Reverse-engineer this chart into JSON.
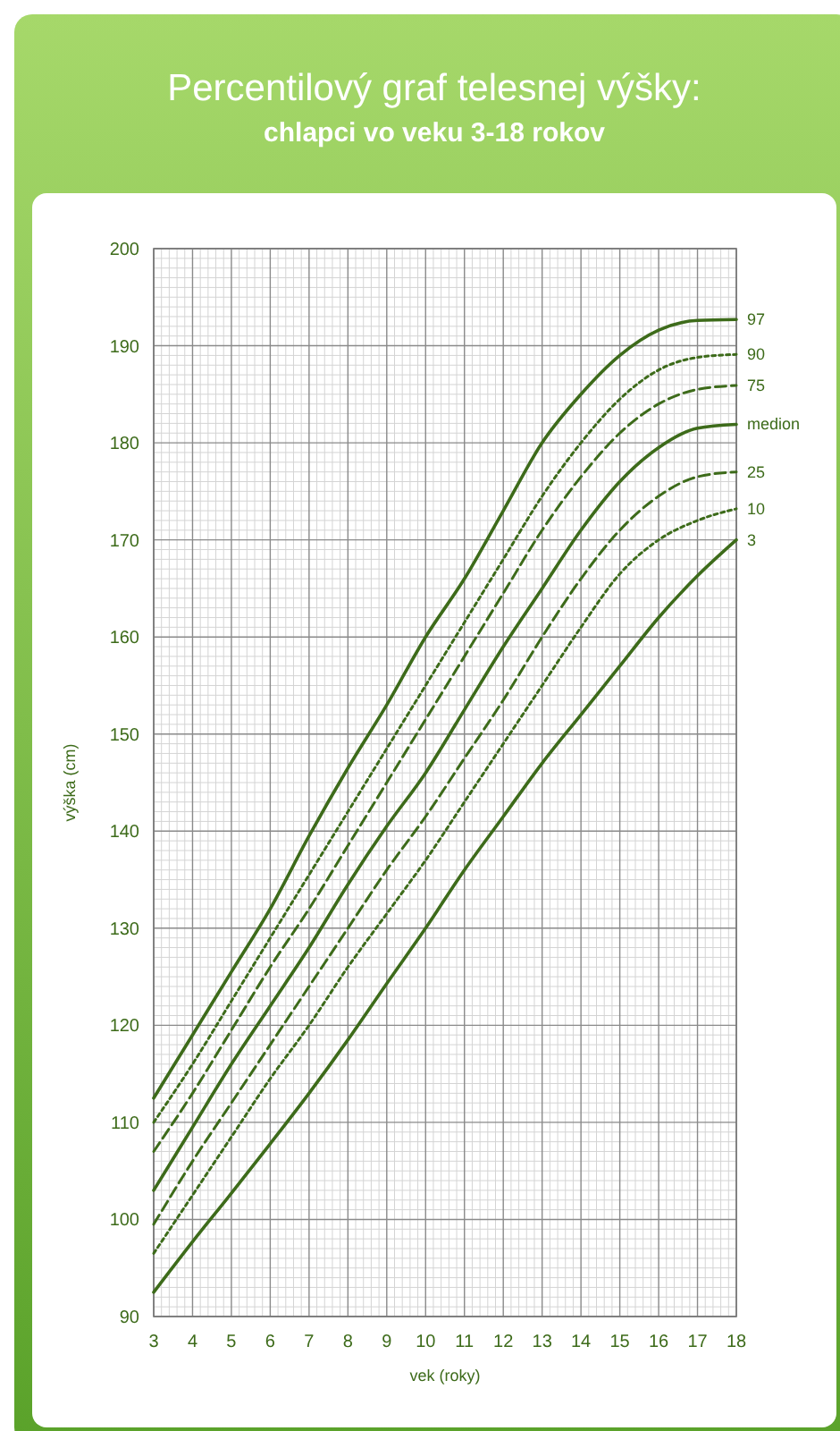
{
  "chart_data": {
    "type": "line",
    "title": "Percentilový graf telesnej výšky:",
    "subtitle": "chlapci vo veku 3-18 rokov",
    "xlabel": "vek (roky)",
    "ylabel": "výška (cm)",
    "x": [
      3,
      4,
      5,
      6,
      7,
      8,
      9,
      10,
      11,
      12,
      13,
      14,
      15,
      16,
      17,
      18
    ],
    "xlim": [
      3,
      18
    ],
    "xticks": [
      3,
      4,
      5,
      6,
      7,
      8,
      9,
      10,
      11,
      12,
      13,
      14,
      15,
      16,
      17,
      18
    ],
    "ylim": [
      90,
      200
    ],
    "yticks": [
      90,
      100,
      110,
      120,
      130,
      140,
      150,
      160,
      170,
      180,
      190,
      200
    ],
    "grid": true,
    "marker": "none",
    "series": [
      {
        "name": "97",
        "color": "#3d6b1a",
        "line_style": "solid",
        "values": [
          112.5,
          119,
          125.5,
          132,
          139.5,
          146.5,
          153,
          160,
          166,
          173,
          180,
          185,
          189,
          191.6,
          192.6,
          192.7
        ]
      },
      {
        "name": "90",
        "color": "#3d6b1a",
        "line_style": "dotted",
        "values": [
          110,
          116,
          122.5,
          129,
          135.5,
          142,
          148.5,
          155,
          161.5,
          168,
          174.5,
          180,
          184.5,
          187.5,
          188.8,
          189.1
        ]
      },
      {
        "name": "75",
        "color": "#3d6b1a",
        "line_style": "dashed",
        "values": [
          107,
          113,
          119.5,
          126,
          132,
          138.5,
          145,
          151.5,
          158,
          164.5,
          171,
          176.5,
          181,
          184,
          185.5,
          185.9
        ]
      },
      {
        "name": "medion",
        "color": "#3d6b1a",
        "line_style": "solid",
        "values": [
          103,
          109.5,
          116,
          122,
          128,
          134.5,
          140.5,
          146,
          152.5,
          159,
          165,
          171,
          176,
          179.5,
          181.5,
          181.9
        ]
      },
      {
        "name": "25",
        "color": "#3d6b1a",
        "line_style": "dashed",
        "values": [
          99.5,
          106,
          112,
          118,
          124,
          130,
          136,
          141.5,
          147.5,
          153.5,
          160,
          166,
          171,
          174.5,
          176.5,
          177
        ]
      },
      {
        "name": "10",
        "color": "#3d6b1a",
        "line_style": "dotted",
        "values": [
          96.5,
          102.5,
          108.5,
          114.5,
          120,
          126,
          131.5,
          137,
          143,
          149,
          155,
          161,
          166.5,
          170,
          172,
          173.2
        ]
      },
      {
        "name": "3",
        "color": "#3d6b1a",
        "line_style": "solid",
        "values": [
          92.5,
          97.7,
          102.7,
          107.8,
          113,
          118.5,
          124.3,
          130,
          136,
          141.5,
          147,
          152,
          157,
          162,
          166.3,
          170
        ]
      }
    ]
  }
}
